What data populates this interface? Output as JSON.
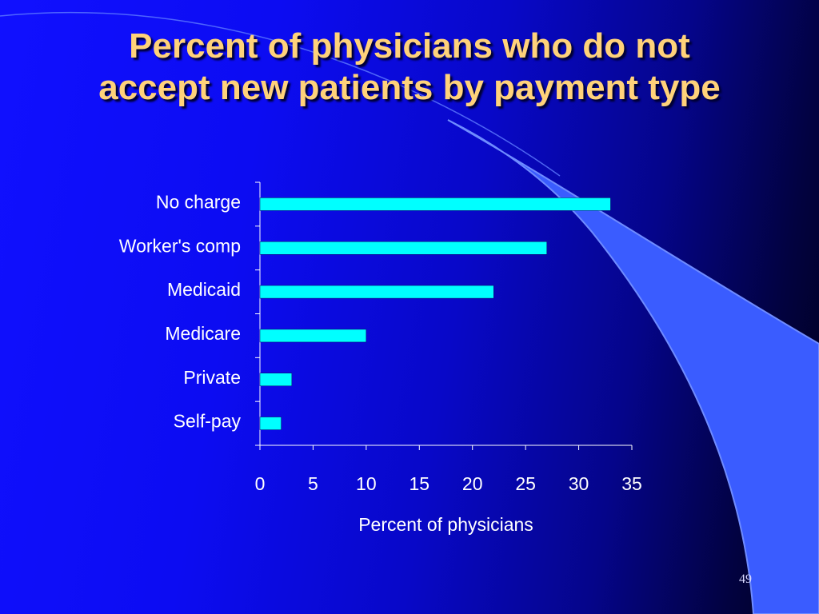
{
  "slide": {
    "title_lines": [
      "Percent of physicians who do not",
      "accept new patients by payment type"
    ],
    "number": "49"
  },
  "colors": {
    "title": "#ffd27a",
    "bar_fill": "#00ffff",
    "axis": "#ffffff",
    "text": "#ffffff",
    "swoosh": "#3a5cff"
  },
  "chart_data": {
    "type": "bar",
    "orientation": "horizontal",
    "categories": [
      "No charge",
      "Worker's comp",
      "Medicaid",
      "Medicare",
      "Private",
      "Self-pay"
    ],
    "values": [
      33,
      27,
      22,
      10,
      3,
      2
    ],
    "xlabel": "Percent of physicians",
    "ylabel": "",
    "xlim": [
      0,
      35
    ],
    "xticks": [
      0,
      5,
      10,
      15,
      20,
      25,
      30,
      35
    ],
    "grid": false,
    "legend": "none"
  }
}
